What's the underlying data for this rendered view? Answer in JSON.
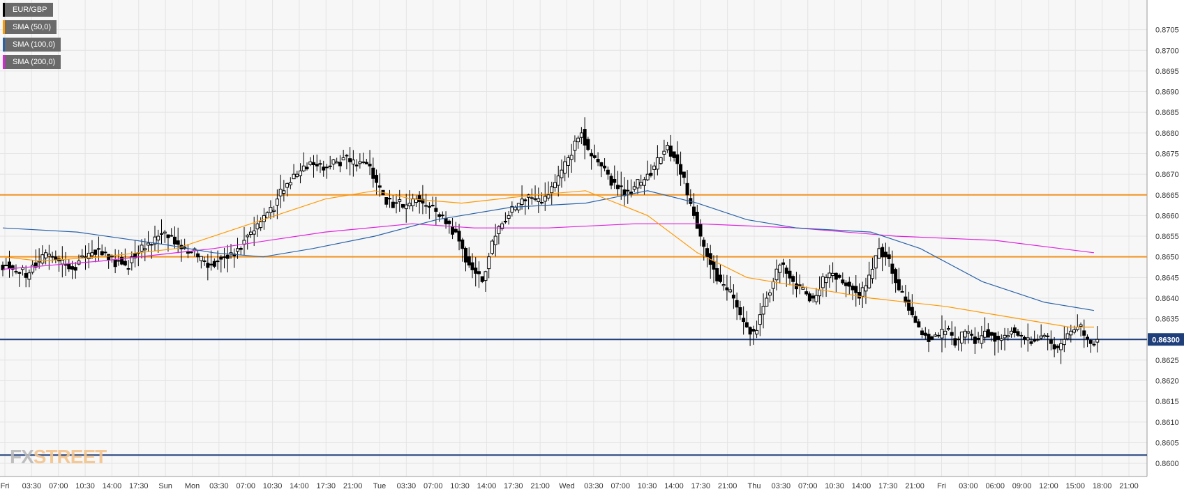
{
  "chart_data": {
    "type": "candlestick",
    "symbol": "EUR/GBP",
    "legend": [
      {
        "label": "EUR/GBP",
        "color": "#000000"
      },
      {
        "label": "SMA (50,0)",
        "color": "#ff9800"
      },
      {
        "label": "SMA (100,0)",
        "color": "#2962a8"
      },
      {
        "label": "SMA (200,0)",
        "color": "#e020e0"
      }
    ],
    "y_ticks": [
      "0.8705",
      "0.8700",
      "0.8695",
      "0.8690",
      "0.8685",
      "0.8680",
      "0.8675",
      "0.8670",
      "0.8665",
      "0.8660",
      "0.8655",
      "0.8650",
      "0.8645",
      "0.8640",
      "0.8635",
      "0.8630",
      "0.8625",
      "0.8620",
      "0.8615",
      "0.8610",
      "0.8605",
      "0.8600"
    ],
    "ylim": [
      0.85985,
      0.87105
    ],
    "x_ticks": [
      "Fri",
      "03:30",
      "07:00",
      "10:30",
      "14:00",
      "17:30",
      "Sun",
      "Mon",
      "03:30",
      "07:00",
      "10:30",
      "14:00",
      "17:30",
      "21:00",
      "Tue",
      "03:30",
      "07:00",
      "10:30",
      "14:00",
      "17:30",
      "21:00",
      "Wed",
      "03:30",
      "07:00",
      "10:30",
      "14:00",
      "17:30",
      "21:00",
      "Thu",
      "03:30",
      "07:00",
      "10:30",
      "14:00",
      "17:30",
      "21:00",
      "Fri",
      "03:00",
      "06:00",
      "09:00",
      "12:00",
      "15:00",
      "18:00",
      "21:00"
    ],
    "horizontal_levels": [
      {
        "value": 0.8665,
        "color": "#f29220",
        "label": ""
      },
      {
        "value": 0.865,
        "color": "#f29220",
        "label": ""
      },
      {
        "value": 0.863,
        "color": "#1f3f7a",
        "label": "0.86300"
      },
      {
        "value": 0.8602,
        "color": "#1f3f7a",
        "label": ""
      }
    ],
    "price_series": [
      0.8648,
      0.8647,
      0.8646,
      0.8645,
      0.8648,
      0.8649,
      0.8651,
      0.865,
      0.8649,
      0.8648,
      0.8647,
      0.8649,
      0.865,
      0.8651,
      0.8652,
      0.8651,
      0.865,
      0.8649,
      0.8648,
      0.865,
      0.8651,
      0.8652,
      0.8653,
      0.8655,
      0.8656,
      0.8655,
      0.8653,
      0.8652,
      0.8651,
      0.865,
      0.8649,
      0.8648,
      0.8649,
      0.865,
      0.8651,
      0.8652,
      0.8654,
      0.8656,
      0.8658,
      0.866,
      0.8662,
      0.8664,
      0.8666,
      0.8668,
      0.867,
      0.8672,
      0.8673,
      0.8672,
      0.8671,
      0.8672,
      0.8673,
      0.8674,
      0.8673,
      0.8672,
      0.8673,
      0.8672,
      0.8668,
      0.8665,
      0.8664,
      0.8663,
      0.8662,
      0.8663,
      0.8664,
      0.8663,
      0.8662,
      0.8661,
      0.866,
      0.8658,
      0.8656,
      0.8652,
      0.8648,
      0.8646,
      0.8644,
      0.865,
      0.8655,
      0.8658,
      0.866,
      0.8662,
      0.8664,
      0.8665,
      0.8664,
      0.8663,
      0.8665,
      0.8668,
      0.8671,
      0.8674,
      0.8678,
      0.868,
      0.8676,
      0.8674,
      0.8672,
      0.867,
      0.8668,
      0.8667,
      0.8666,
      0.8667,
      0.8668,
      0.867,
      0.8672,
      0.8674,
      0.8677,
      0.8674,
      0.867,
      0.8665,
      0.866,
      0.8655,
      0.865,
      0.8647,
      0.8644,
      0.8642,
      0.864,
      0.8636,
      0.8633,
      0.8632,
      0.8636,
      0.864,
      0.8644,
      0.8648,
      0.8646,
      0.8644,
      0.8643,
      0.8641,
      0.864,
      0.8642,
      0.8645,
      0.8646,
      0.8645,
      0.8643,
      0.8642,
      0.864,
      0.8643,
      0.8647,
      0.8652,
      0.865,
      0.8646,
      0.8642,
      0.8639,
      0.8636,
      0.8633,
      0.8631,
      0.863,
      0.8631,
      0.8632,
      0.8631,
      0.863,
      0.8632,
      0.8631,
      0.863,
      0.8632,
      0.8631,
      0.863,
      0.8631,
      0.8632,
      0.8631,
      0.863,
      0.8629,
      0.863,
      0.8631,
      0.8629,
      0.8628,
      0.863,
      0.8632,
      0.8633,
      0.8631,
      0.8629,
      0.863
    ],
    "sma50": [
      [
        0,
        0.865
      ],
      [
        30,
        0.8649
      ],
      [
        80,
        0.865
      ],
      [
        140,
        0.8652
      ],
      [
        200,
        0.8658
      ],
      [
        260,
        0.8664
      ],
      [
        300,
        0.8666
      ],
      [
        330,
        0.8664
      ],
      [
        370,
        0.8663
      ],
      [
        430,
        0.8665
      ],
      [
        470,
        0.8666
      ],
      [
        520,
        0.866
      ],
      [
        560,
        0.8651
      ],
      [
        600,
        0.8645
      ],
      [
        640,
        0.8643
      ],
      [
        700,
        0.864
      ],
      [
        760,
        0.8638
      ],
      [
        820,
        0.8635
      ],
      [
        860,
        0.8633
      ],
      [
        880,
        0.8633
      ]
    ],
    "sma100": [
      [
        0,
        0.8657
      ],
      [
        60,
        0.8656
      ],
      [
        130,
        0.8653
      ],
      [
        170,
        0.8651
      ],
      [
        210,
        0.865
      ],
      [
        250,
        0.8652
      ],
      [
        300,
        0.8655
      ],
      [
        350,
        0.8659
      ],
      [
        410,
        0.8662
      ],
      [
        470,
        0.8663
      ],
      [
        520,
        0.8666
      ],
      [
        560,
        0.8663
      ],
      [
        600,
        0.8659
      ],
      [
        640,
        0.8657
      ],
      [
        700,
        0.8656
      ],
      [
        740,
        0.8652
      ],
      [
        790,
        0.8644
      ],
      [
        840,
        0.8639
      ],
      [
        880,
        0.8637
      ]
    ],
    "sma200": [
      [
        0,
        0.8647
      ],
      [
        80,
        0.8649
      ],
      [
        170,
        0.8652
      ],
      [
        260,
        0.8656
      ],
      [
        330,
        0.8658
      ],
      [
        380,
        0.8657
      ],
      [
        440,
        0.8657
      ],
      [
        510,
        0.8658
      ],
      [
        560,
        0.8658
      ],
      [
        640,
        0.8657
      ],
      [
        720,
        0.8655
      ],
      [
        800,
        0.8654
      ],
      [
        880,
        0.8651
      ]
    ],
    "grid": true
  },
  "branding": {
    "logo_part1": "FX",
    "logo_part2": "STREET"
  }
}
